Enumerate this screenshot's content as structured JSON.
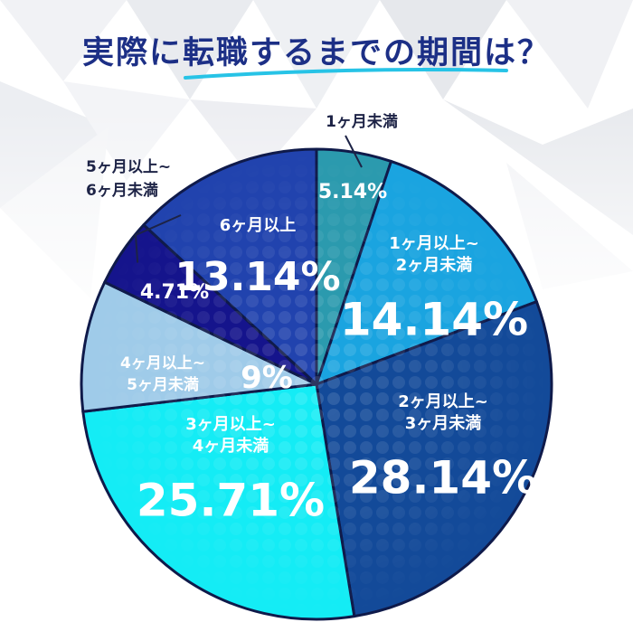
{
  "title": "実際に転職するまでの期間は？",
  "chart_data": {
    "type": "pie",
    "title": "実際に転職するまでの期間は？",
    "slices": [
      {
        "label": "1ヶ月未満",
        "value": 5.14,
        "display": "5.14%",
        "color": "#2b9aae"
      },
      {
        "label": "1ヶ月以上~2ヶ月未満",
        "value": 14.14,
        "display": "14.14%",
        "color": "#1aa4e0"
      },
      {
        "label": "2ヶ月以上~3ヶ月未満",
        "value": 28.14,
        "display": "28.14%",
        "color": "#134a99"
      },
      {
        "label": "3ヶ月以上~4ヶ月未満",
        "value": 25.71,
        "display": "25.71%",
        "color": "#14ecf5"
      },
      {
        "label": "4ヶ月以上~5ヶ月未満",
        "value": 9,
        "display": "9%",
        "color": "#9fcbe9"
      },
      {
        "label": "5ヶ月以上~6ヶ月未満",
        "value": 4.71,
        "display": "4.71%",
        "color": "#15148c"
      },
      {
        "label": "6ヶ月以上",
        "value": 13.14,
        "display": "13.14%",
        "color": "#2143ae"
      }
    ]
  }
}
